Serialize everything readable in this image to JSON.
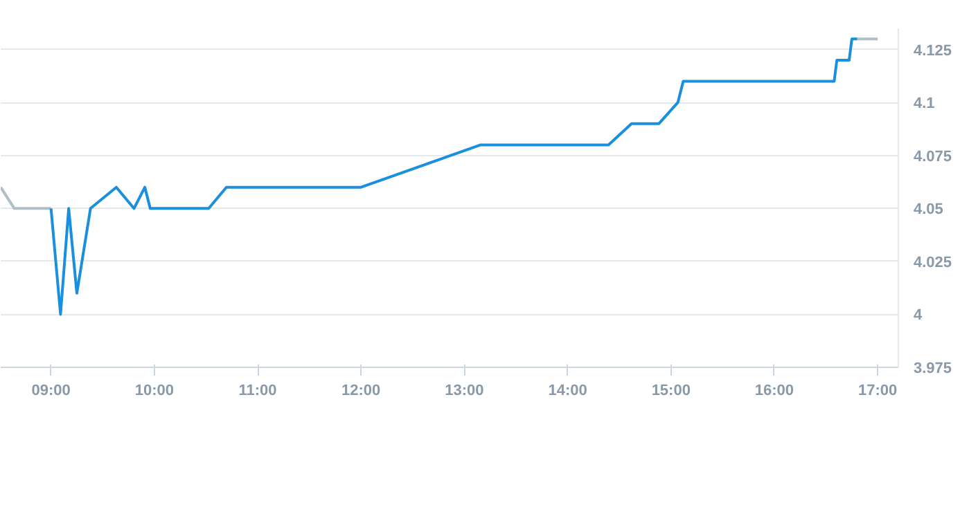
{
  "chart_data": {
    "type": "line",
    "x": [
      9,
      9.092,
      9.171,
      9.25,
      9.382,
      9.632,
      9.803,
      9.908,
      9.96,
      10.526,
      10.697,
      12,
      13.158,
      14.395,
      14.618,
      14.882,
      15.066,
      15.118,
      16.579,
      16.605,
      16.724,
      16.75,
      16.803
    ],
    "series": [
      {
        "color": "#b0bec5",
        "x": [
          8.513,
          8.645,
          9
        ],
        "values": [
          4.06,
          4.05,
          4.05
        ]
      },
      {
        "color": "#1a8fdd",
        "values": [
          4.05,
          4.0,
          4.05,
          4.01,
          4.05,
          4.06,
          4.05,
          4.06,
          4.05,
          4.05,
          4.06,
          4.06,
          4.08,
          4.08,
          4.09,
          4.09,
          4.1,
          4.11,
          4.11,
          4.12,
          4.12,
          4.13,
          4.13
        ]
      },
      {
        "color": "#b0bec5",
        "x": [
          16.803,
          17.0
        ],
        "values": [
          4.13,
          4.13
        ]
      }
    ],
    "xlim": [
      8.513,
      17.2
    ],
    "ylim": [
      3.975,
      4.135
    ],
    "xticks": [
      {
        "value": 9,
        "label": "09:00"
      },
      {
        "value": 10,
        "label": "10:00"
      },
      {
        "value": 11,
        "label": "11:00"
      },
      {
        "value": 12,
        "label": "12:00"
      },
      {
        "value": 13,
        "label": "13:00"
      },
      {
        "value": 14,
        "label": "14:00"
      },
      {
        "value": 15,
        "label": "15:00"
      },
      {
        "value": 16,
        "label": "16:00"
      },
      {
        "value": 17,
        "label": "17:00"
      }
    ],
    "yticks": [
      3.975,
      4,
      4.025,
      4.05,
      4.075,
      4.1,
      4.125
    ],
    "grid": "y",
    "marker": "none",
    "line_style": "solid"
  }
}
